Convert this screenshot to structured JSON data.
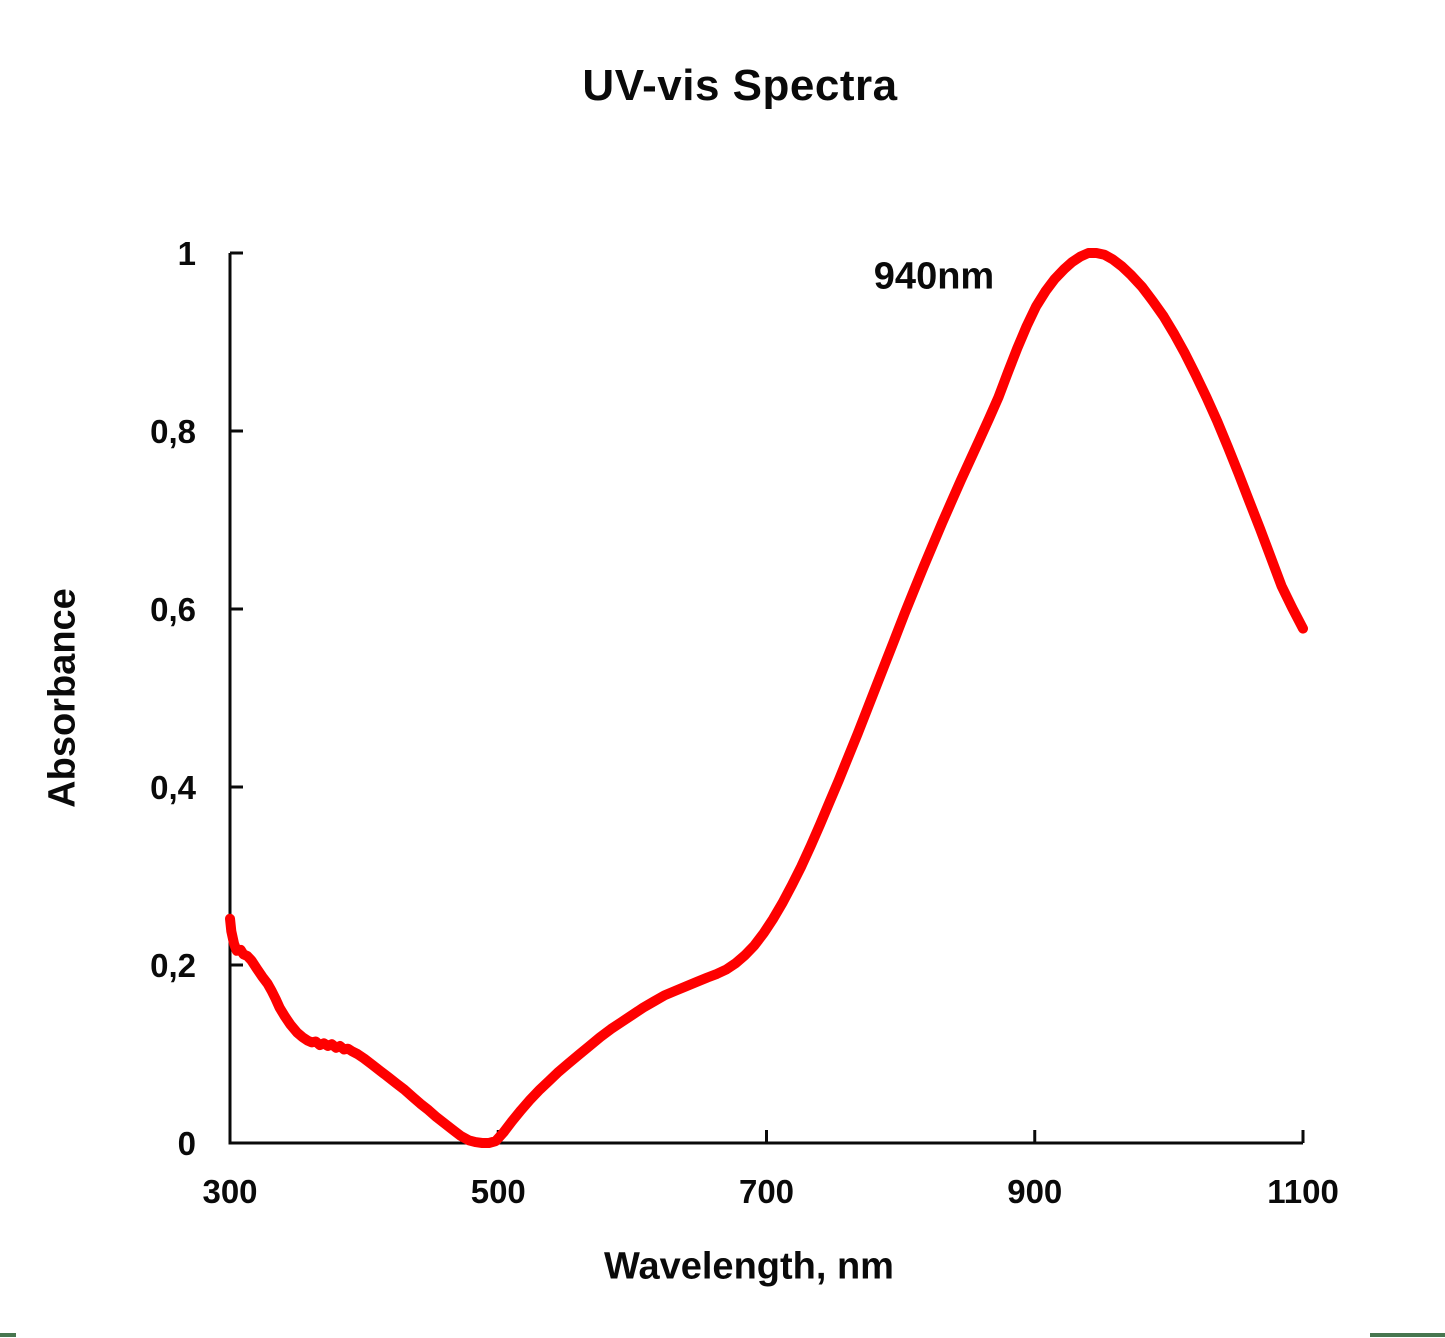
{
  "page": {
    "background_color": "#ffffff",
    "text_color": "#0a0a0a",
    "border_mark_color": "#47764f"
  },
  "chart_data": {
    "type": "line",
    "title": "UV-vis Spectra",
    "xlabel": "Wavelength, nm",
    "ylabel": "Absorbance",
    "xlim": [
      300,
      1100
    ],
    "ylim": [
      0,
      1
    ],
    "grid": false,
    "legend": "none",
    "axis_color": "#0a0a0a",
    "x_ticks": {
      "values": [
        300,
        500,
        700,
        900,
        1100
      ],
      "labels": [
        "300",
        "500",
        "700",
        "900",
        "1100"
      ]
    },
    "y_ticks": {
      "values": [
        0,
        0.2,
        0.4,
        0.6,
        0.8,
        1
      ],
      "labels": [
        "0",
        "0,2",
        "0,4",
        "0,6",
        "0,8",
        "1"
      ]
    },
    "annotation": {
      "text": "940nm",
      "x": 940,
      "y": 0.97
    },
    "peak_wavelength_nm": 940,
    "series": [
      {
        "name": "absorbance-spectrum",
        "color": "#fe0000",
        "x": [
          300,
          301,
          303,
          305,
          308,
          310,
          313,
          316,
          320,
          324,
          328,
          331,
          334,
          337,
          341,
          345,
          350,
          354,
          358,
          361,
          364,
          367,
          370,
          373,
          376,
          379,
          382,
          385,
          388,
          391,
          395,
          400,
          406,
          412,
          418,
          424,
          430,
          436,
          442,
          448,
          454,
          460,
          466,
          472,
          478,
          483,
          488,
          493,
          498,
          504,
          510,
          517,
          524,
          531,
          538,
          545,
          552,
          560,
          568,
          576,
          584,
          592,
          600,
          608,
          616,
          624,
          632,
          640,
          648,
          656,
          663,
          670,
          677,
          684,
          691,
          698,
          705,
          712,
          719,
          726,
          733,
          740,
          747,
          754,
          761,
          768,
          775,
          782,
          789,
          796,
          803,
          810,
          817,
          824,
          831,
          838,
          845,
          852,
          859,
          866,
          873,
          880,
          887,
          894,
          901,
          908,
          915,
          922,
          928,
          934,
          940,
          946,
          952,
          958,
          965,
          972,
          980,
          988,
          996,
          1004,
          1012,
          1020,
          1028,
          1036,
          1044,
          1052,
          1060,
          1068,
          1076,
          1084,
          1092,
          1100
        ],
        "y": [
          0.252,
          0.238,
          0.224,
          0.216,
          0.217,
          0.212,
          0.21,
          0.205,
          0.196,
          0.187,
          0.179,
          0.171,
          0.162,
          0.152,
          0.142,
          0.133,
          0.124,
          0.119,
          0.115,
          0.113,
          0.114,
          0.11,
          0.112,
          0.109,
          0.111,
          0.107,
          0.109,
          0.105,
          0.106,
          0.103,
          0.1,
          0.095,
          0.088,
          0.081,
          0.074,
          0.067,
          0.06,
          0.052,
          0.044,
          0.037,
          0.029,
          0.022,
          0.015,
          0.008,
          0.003,
          0.001,
          0.0,
          0.0,
          0.002,
          0.012,
          0.024,
          0.037,
          0.049,
          0.06,
          0.07,
          0.08,
          0.089,
          0.099,
          0.109,
          0.119,
          0.128,
          0.136,
          0.144,
          0.152,
          0.159,
          0.166,
          0.171,
          0.176,
          0.181,
          0.186,
          0.19,
          0.195,
          0.202,
          0.211,
          0.222,
          0.236,
          0.252,
          0.27,
          0.29,
          0.311,
          0.334,
          0.358,
          0.383,
          0.408,
          0.434,
          0.46,
          0.487,
          0.514,
          0.541,
          0.568,
          0.595,
          0.621,
          0.647,
          0.672,
          0.697,
          0.721,
          0.745,
          0.768,
          0.791,
          0.814,
          0.838,
          0.866,
          0.893,
          0.918,
          0.94,
          0.957,
          0.971,
          0.982,
          0.99,
          0.996,
          1.0,
          1.0,
          0.998,
          0.993,
          0.985,
          0.975,
          0.962,
          0.946,
          0.929,
          0.909,
          0.887,
          0.863,
          0.838,
          0.811,
          0.782,
          0.752,
          0.721,
          0.69,
          0.658,
          0.626,
          0.601,
          0.578
        ]
      }
    ]
  }
}
